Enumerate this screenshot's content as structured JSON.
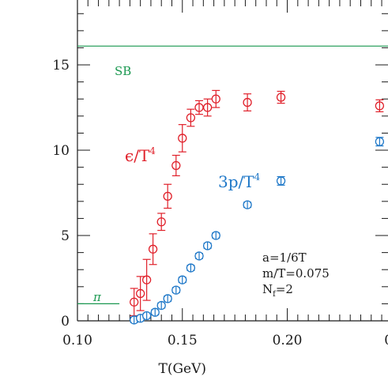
{
  "chart_data": {
    "type": "scatter",
    "xlabel": "T(GeV)",
    "ylabel": "",
    "xlim": [
      0.1,
      0.248
    ],
    "ylim": [
      0,
      18.8
    ],
    "x_ticks": [
      0.1,
      0.15,
      0.2,
      0.25
    ],
    "x_tick_labels": [
      "0.10",
      "0.15",
      "0.20",
      "0.25"
    ],
    "y_ticks": [
      0,
      5,
      10,
      15
    ],
    "y_tick_labels": [
      "0",
      "5",
      "10",
      "15"
    ],
    "grid": false,
    "reference_lines": [
      {
        "label": "SB",
        "y": 16.1,
        "color": "#1a9850"
      },
      {
        "label": "π",
        "y": 1.0,
        "x_range": [
          0.1,
          0.12
        ],
        "color": "#1a9850"
      }
    ],
    "series": [
      {
        "label_main": "ϵ/T",
        "label_sup": "4",
        "color": "#e0202a",
        "points": [
          {
            "x": 0.127,
            "y": 1.1,
            "err": 0.8
          },
          {
            "x": 0.13,
            "y": 1.6,
            "err": 1.0
          },
          {
            "x": 0.133,
            "y": 2.4,
            "err": 1.2
          },
          {
            "x": 0.136,
            "y": 4.2,
            "err": 0.9
          },
          {
            "x": 0.14,
            "y": 5.8,
            "err": 0.5
          },
          {
            "x": 0.143,
            "y": 7.3,
            "err": 0.7
          },
          {
            "x": 0.147,
            "y": 9.1,
            "err": 0.6
          },
          {
            "x": 0.15,
            "y": 10.7,
            "err": 0.8
          },
          {
            "x": 0.154,
            "y": 11.9,
            "err": 0.5
          },
          {
            "x": 0.158,
            "y": 12.5,
            "err": 0.4
          },
          {
            "x": 0.162,
            "y": 12.5,
            "err": 0.5
          },
          {
            "x": 0.166,
            "y": 13.0,
            "err": 0.5
          },
          {
            "x": 0.181,
            "y": 12.8,
            "err": 0.5
          },
          {
            "x": 0.197,
            "y": 13.1,
            "err": 0.35
          },
          {
            "x": 0.244,
            "y": 12.6,
            "err": 0.35
          }
        ]
      },
      {
        "label_main": "3p/T",
        "label_sup": "4",
        "color": "#1f78c8",
        "points": [
          {
            "x": 0.127,
            "y": 0.05,
            "err": 0.15
          },
          {
            "x": 0.13,
            "y": 0.15,
            "err": 0.15
          },
          {
            "x": 0.133,
            "y": 0.3,
            "err": 0.15
          },
          {
            "x": 0.137,
            "y": 0.5,
            "err": 0.15
          },
          {
            "x": 0.14,
            "y": 0.9,
            "err": 0.15
          },
          {
            "x": 0.143,
            "y": 1.3,
            "err": 0.15
          },
          {
            "x": 0.147,
            "y": 1.8,
            "err": 0.15
          },
          {
            "x": 0.15,
            "y": 2.4,
            "err": 0.15
          },
          {
            "x": 0.154,
            "y": 3.1,
            "err": 0.15
          },
          {
            "x": 0.158,
            "y": 3.8,
            "err": 0.15
          },
          {
            "x": 0.162,
            "y": 4.4,
            "err": 0.15
          },
          {
            "x": 0.166,
            "y": 5.0,
            "err": 0.15
          },
          {
            "x": 0.181,
            "y": 6.8,
            "err": 0.15
          },
          {
            "x": 0.197,
            "y": 8.2,
            "err": 0.25
          },
          {
            "x": 0.244,
            "y": 10.5,
            "err": 0.25
          }
        ]
      }
    ],
    "annotation": {
      "line1": "a=1/6T",
      "line2": "m/T=0.075",
      "line3_main": "N",
      "line3_sub": "f",
      "line3_rest": "=2"
    }
  }
}
